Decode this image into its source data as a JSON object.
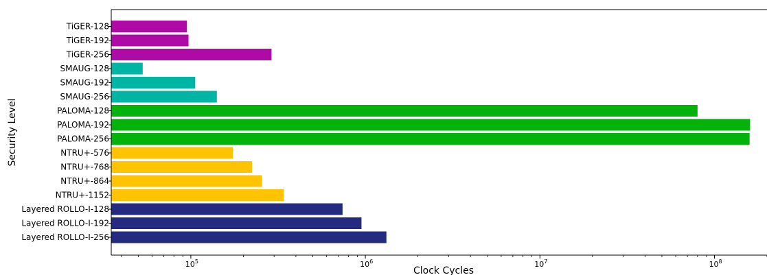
{
  "chart_data": {
    "type": "bar",
    "orientation": "horizontal",
    "xscale": "log",
    "xlabel": "Clock Cycles",
    "ylabel": "Security Level",
    "xlim": [
      35000,
      200000000
    ],
    "grid": false,
    "x_ticks": [
      {
        "base": "10",
        "exp": "5",
        "value": 100000
      },
      {
        "base": "10",
        "exp": "6",
        "value": 1000000
      },
      {
        "base": "10",
        "exp": "7",
        "value": 10000000
      },
      {
        "base": "10",
        "exp": "8",
        "value": 100000000
      }
    ],
    "categories": [
      "TiGER-128",
      "TiGER-192",
      "TiGER-256",
      "SMAUG-128",
      "SMAUG-192",
      "SMAUG-256",
      "PALOMA-128",
      "PALOMA-192",
      "PALOMA-256",
      "NTRU+-576",
      "NTRU+-768",
      "NTRU+-864",
      "NTRU+-1152",
      "Layered ROLLO-I-128",
      "Layered ROLLO-I-192",
      "Layered ROLLO-I-256"
    ],
    "values": [
      95000,
      97000,
      290000,
      53000,
      106000,
      141000,
      80000000,
      160000000,
      159000000,
      174000,
      224000,
      256000,
      340000,
      740000,
      950000,
      1320000
    ],
    "colors": [
      "#b00aa6",
      "#b00aa6",
      "#b00aa6",
      "#00b5a3",
      "#00b5a3",
      "#00b5a3",
      "#03b30c",
      "#03b30c",
      "#03b30c",
      "#ffc300",
      "#ffc300",
      "#ffc300",
      "#ffc300",
      "#232a7f",
      "#232a7f",
      "#232a7f"
    ]
  }
}
